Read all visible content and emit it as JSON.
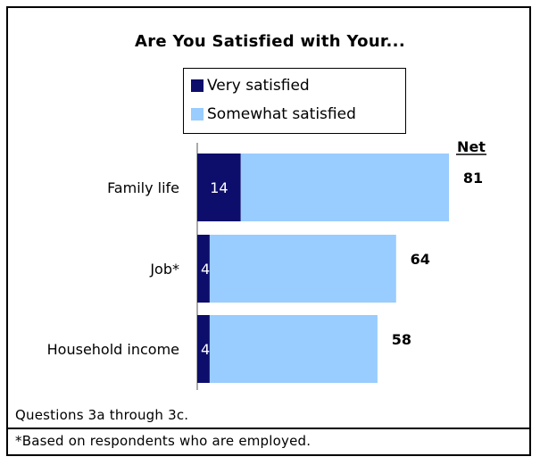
{
  "chart_data": {
    "type": "bar",
    "stacked": true,
    "orientation": "horizontal",
    "title": "Are You Satisfied with Your...",
    "categories": [
      "Family life",
      "Job*",
      "Household income"
    ],
    "series": [
      {
        "name": "Very satisfied",
        "values": [
          14,
          4,
          4
        ],
        "color": "#0d0d6b"
      },
      {
        "name": "Somewhat satisfied",
        "values": [
          67,
          60,
          54
        ],
        "color": "#99ccff"
      }
    ],
    "value_labels": [
      "14",
      "4",
      "4"
    ],
    "net_header": "Net",
    "net_values": [
      "81",
      "64",
      "58"
    ],
    "xlim": [
      0,
      81
    ],
    "legend_position": "top"
  },
  "footnotes": [
    "Questions 3a through 3c.",
    "*Based on respondents who are employed."
  ]
}
